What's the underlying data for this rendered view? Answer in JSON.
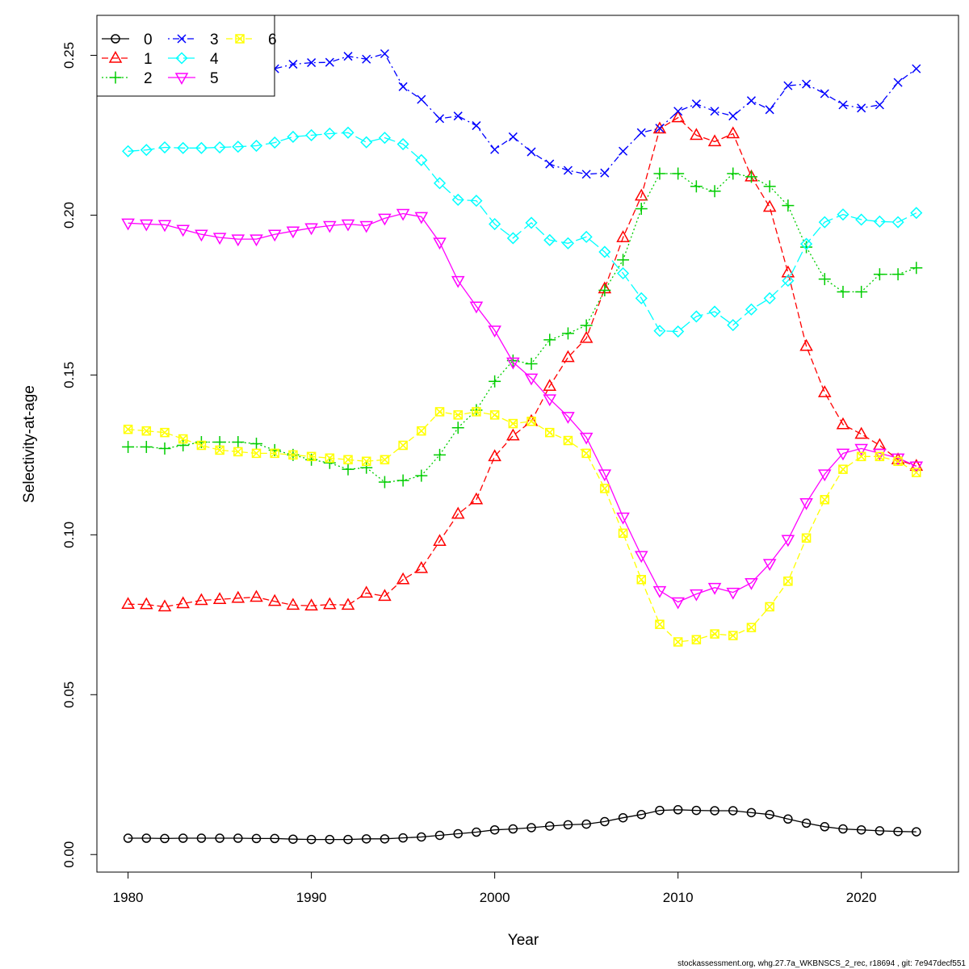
{
  "chart_data": {
    "type": "line",
    "title": "",
    "xlabel": "Year",
    "ylabel": "Selectivity-at-age",
    "xlim": [
      1978.3,
      2025.3
    ],
    "ylim": [
      -0.0055,
      0.2625
    ],
    "xticks": [
      1980,
      1990,
      2000,
      2010,
      2020
    ],
    "yticks": [
      "0.00",
      "0.05",
      "0.10",
      "0.15",
      "0.20",
      "0.25"
    ],
    "grid": false,
    "legend_position": "top-left",
    "x": [
      1980,
      1981,
      1982,
      1983,
      1984,
      1985,
      1986,
      1987,
      1988,
      1989,
      1990,
      1991,
      1992,
      1993,
      1994,
      1995,
      1996,
      1997,
      1998,
      1999,
      2000,
      2001,
      2002,
      2003,
      2004,
      2005,
      2006,
      2007,
      2008,
      2009,
      2010,
      2011,
      2012,
      2013,
      2014,
      2015,
      2016,
      2017,
      2018,
      2019,
      2020,
      2021,
      2022,
      2023
    ],
    "series": [
      {
        "name": "0",
        "color": "#000000",
        "marker": "circle",
        "dash": "solid",
        "values": [
          0.0051,
          0.0051,
          0.005,
          0.0051,
          0.0051,
          0.0051,
          0.0051,
          0.005,
          0.005,
          0.0048,
          0.0047,
          0.0047,
          0.0047,
          0.0049,
          0.0049,
          0.0052,
          0.0055,
          0.006,
          0.0065,
          0.007,
          0.0077,
          0.008,
          0.0084,
          0.0089,
          0.0093,
          0.0095,
          0.0103,
          0.0115,
          0.0125,
          0.0138,
          0.014,
          0.0138,
          0.0137,
          0.0137,
          0.0131,
          0.0125,
          0.0111,
          0.0098,
          0.0087,
          0.008,
          0.0077,
          0.0074,
          0.0072,
          0.0071
        ]
      },
      {
        "name": "1",
        "color": "#ff0000",
        "marker": "triangle-up",
        "dash": "dashed",
        "values": [
          0.0783,
          0.0782,
          0.0775,
          0.0785,
          0.0795,
          0.0798,
          0.0802,
          0.0805,
          0.0792,
          0.078,
          0.0778,
          0.0782,
          0.078,
          0.0818,
          0.0808,
          0.086,
          0.0895,
          0.098,
          0.1065,
          0.111,
          0.1245,
          0.131,
          0.1355,
          0.1465,
          0.1555,
          0.1615,
          0.177,
          0.193,
          0.206,
          0.227,
          0.2305,
          0.225,
          0.223,
          0.2255,
          0.212,
          0.2025,
          0.182,
          0.159,
          0.1445,
          0.1345,
          0.1315,
          0.128,
          0.1235,
          0.1215
        ]
      },
      {
        "name": "2",
        "color": "#00cd00",
        "marker": "plus",
        "dash": "dotted",
        "values": [
          0.1275,
          0.1275,
          0.127,
          0.128,
          0.129,
          0.129,
          0.129,
          0.1285,
          0.1265,
          0.125,
          0.1235,
          0.1225,
          0.1205,
          0.121,
          0.1165,
          0.117,
          0.1185,
          0.125,
          0.1335,
          0.139,
          0.148,
          0.1545,
          0.1535,
          0.161,
          0.163,
          0.1655,
          0.1765,
          0.186,
          0.202,
          0.213,
          0.213,
          0.209,
          0.2075,
          0.213,
          0.212,
          0.209,
          0.203,
          0.19,
          0.18,
          0.176,
          0.176,
          0.1815,
          0.1815,
          0.1835
        ]
      },
      {
        "name": "3",
        "color": "#0000ff",
        "marker": "x",
        "dash": "dotdash",
        "values": [
          0.2425,
          0.2432,
          0.2422,
          0.2442,
          0.2448,
          0.244,
          0.2452,
          0.2462,
          0.2458,
          0.2472,
          0.2477,
          0.2478,
          0.2497,
          0.2488,
          0.2505,
          0.2402,
          0.2362,
          0.2302,
          0.231,
          0.228,
          0.2205,
          0.2245,
          0.2198,
          0.216,
          0.214,
          0.2128,
          0.2132,
          0.22,
          0.2258,
          0.2272,
          0.2325,
          0.2348,
          0.2325,
          0.231,
          0.2358,
          0.233,
          0.2405,
          0.241,
          0.238,
          0.2345,
          0.2335,
          0.2345,
          0.2415,
          0.2458
        ]
      },
      {
        "name": "4",
        "color": "#00ffff",
        "marker": "diamond",
        "dash": "longdash",
        "values": [
          0.22,
          0.2204,
          0.2212,
          0.221,
          0.221,
          0.2212,
          0.2214,
          0.2217,
          0.2227,
          0.2245,
          0.225,
          0.2255,
          0.2258,
          0.2228,
          0.2242,
          0.2222,
          0.2172,
          0.21,
          0.2048,
          0.2045,
          0.1972,
          0.1928,
          0.1976,
          0.1922,
          0.1912,
          0.1932,
          0.1885,
          0.1818,
          0.174,
          0.1638,
          0.1636,
          0.1683,
          0.1698,
          0.1656,
          0.1705,
          0.174,
          0.1795,
          0.191,
          0.1978,
          0.2002,
          0.1986,
          0.198,
          0.1978,
          0.2007
        ]
      },
      {
        "name": "5",
        "color": "#ff00ff",
        "marker": "triangle-down",
        "dash": "solid",
        "values": [
          0.1975,
          0.1972,
          0.197,
          0.1955,
          0.194,
          0.193,
          0.1925,
          0.1925,
          0.194,
          0.195,
          0.196,
          0.1967,
          0.1972,
          0.1967,
          0.199,
          0.2005,
          0.1995,
          0.1915,
          0.1795,
          0.1715,
          0.164,
          0.154,
          0.149,
          0.1425,
          0.137,
          0.1305,
          0.119,
          0.1055,
          0.0935,
          0.0825,
          0.079,
          0.0815,
          0.0835,
          0.082,
          0.085,
          0.091,
          0.0985,
          0.11,
          0.119,
          0.1255,
          0.127,
          0.1255,
          0.124,
          0.1215
        ]
      },
      {
        "name": "6",
        "color": "#ffff00",
        "marker": "square-x",
        "dash": "dashed",
        "values": [
          0.133,
          0.1325,
          0.132,
          0.13,
          0.128,
          0.1265,
          0.126,
          0.1255,
          0.1255,
          0.125,
          0.1245,
          0.124,
          0.1235,
          0.123,
          0.1235,
          0.128,
          0.1325,
          0.1385,
          0.1375,
          0.1385,
          0.1375,
          0.1348,
          0.1355,
          0.132,
          0.1295,
          0.1255,
          0.1145,
          0.1005,
          0.086,
          0.072,
          0.0665,
          0.0672,
          0.069,
          0.0685,
          0.071,
          0.0775,
          0.0855,
          0.099,
          0.111,
          0.1205,
          0.1245,
          0.1245,
          0.123,
          0.1195
        ]
      }
    ]
  },
  "footer": {
    "text": "stockassessment.org, whg.27.7a_WKBNSCS_2_rec, r18694 , git: 7e947decf551"
  }
}
